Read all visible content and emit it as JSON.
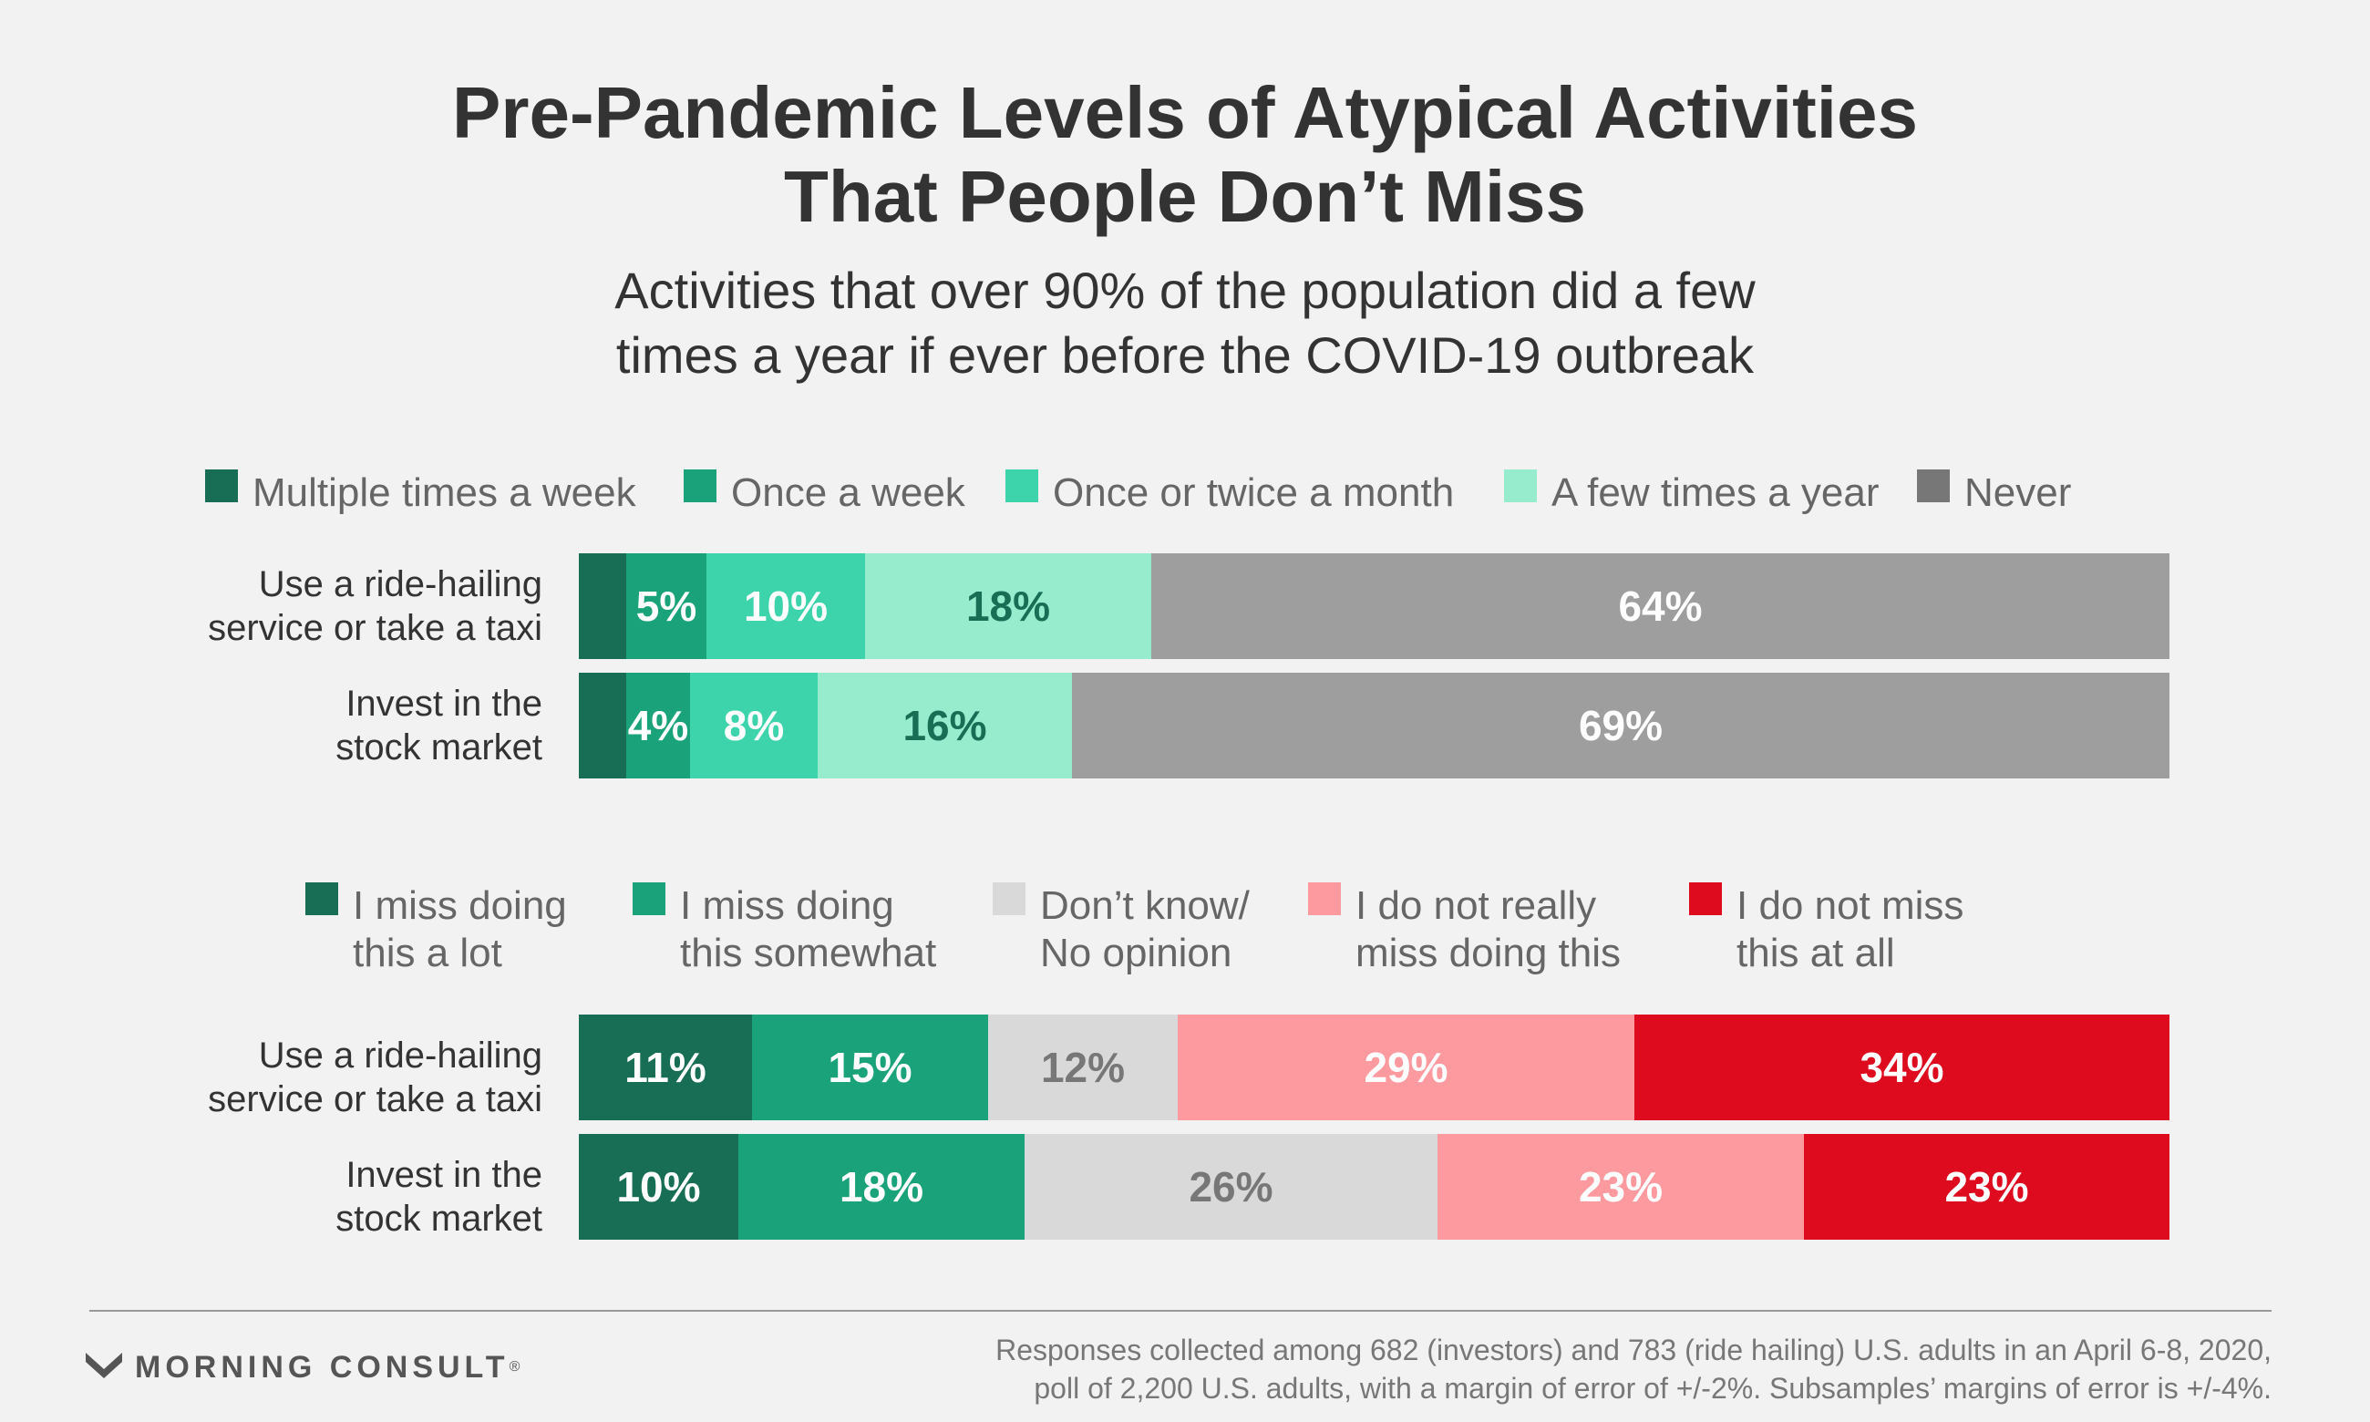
{
  "title_line1": "Pre-Pandemic Levels of Atypical Activities",
  "title_line2": "That People Don’t Miss",
  "subtitle_line1": "Activities that over 90% of the population did a few",
  "subtitle_line2": "times a year if ever before the COVID-19 outbreak",
  "chart_data": [
    {
      "type": "bar",
      "orientation": "horizontal",
      "stacked": true,
      "categories": [
        "Use a ride-hailing\nservice or take a taxi",
        "Invest in the\nstock market"
      ],
      "series": [
        {
          "name": "Multiple times a week",
          "color": "#176e55",
          "values": [
            3,
            3
          ],
          "labels": [
            "",
            ""
          ],
          "label_color": "#ffffff"
        },
        {
          "name": "Once a week",
          "color": "#1aa37a",
          "values": [
            5,
            4
          ],
          "labels": [
            "5%",
            "4%"
          ],
          "label_color": "#ffffff"
        },
        {
          "name": "Once or twice a month",
          "color": "#3dd3ab",
          "values": [
            10,
            8
          ],
          "labels": [
            "10%",
            "8%"
          ],
          "label_color": "#ffffff"
        },
        {
          "name": "A few times a year",
          "color": "#97ecce",
          "values": [
            18,
            16
          ],
          "labels": [
            "18%",
            "16%"
          ],
          "label_color": "#176e55"
        },
        {
          "name": "Never",
          "color": "#9e9e9e",
          "values": [
            64,
            69
          ],
          "labels": [
            "64%",
            "69%"
          ],
          "label_color": "#ffffff"
        }
      ],
      "legend_swatch_colors": [
        "#176e55",
        "#1aa37a",
        "#3dd3ab",
        "#97ecce",
        "#777777"
      ],
      "legend_placement": "top"
    },
    {
      "type": "bar",
      "orientation": "horizontal",
      "stacked": true,
      "categories": [
        "Use a ride-hailing\nservice or take a taxi",
        "Invest in the\nstock market"
      ],
      "series": [
        {
          "name": "I miss doing\nthis a lot",
          "color": "#176e55",
          "values": [
            11,
            10
          ],
          "labels": [
            "11%",
            "10%"
          ],
          "label_color": "#ffffff"
        },
        {
          "name": "I miss doing\nthis somewhat",
          "color": "#1aa37a",
          "values": [
            15,
            18
          ],
          "labels": [
            "15%",
            "18%"
          ],
          "label_color": "#ffffff"
        },
        {
          "name": "Don’t know/\nNo opinion",
          "color": "#d9d9d9",
          "values": [
            12,
            26
          ],
          "labels": [
            "12%",
            "26%"
          ],
          "label_color": "#777777"
        },
        {
          "name": "I do not really\nmiss doing this",
          "color": "#fc9aa0",
          "values": [
            29,
            23
          ],
          "labels": [
            "29%",
            "23%"
          ],
          "label_color": "#ffffff"
        },
        {
          "name": "I do not miss\nthis at all",
          "color": "#de0a1e",
          "values": [
            34,
            23
          ],
          "labels": [
            "34%",
            "23%"
          ],
          "label_color": "#ffffff"
        }
      ],
      "legend_swatch_colors": [
        "#176e55",
        "#1aa37a",
        "#d9d9d9",
        "#fc9aa0",
        "#de0a1e"
      ],
      "legend_placement": "top"
    }
  ],
  "logo_text": "MORNING CONSULT",
  "logo_mark": "®",
  "footnote": "Responses collected among 682 (investors) and 783 (ride hailing) U.S. adults in an April 6-8, 2020,\npoll of 2,200 U.S. adults, with a margin of error of +/-2%. Subsamples’ margins of error is +/-4%."
}
